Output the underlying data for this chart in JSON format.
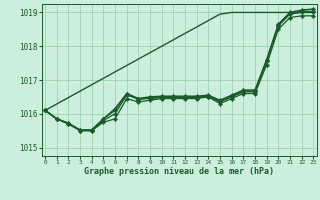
{
  "title": "Graphe pression niveau de la mer (hPa)",
  "hours": [
    0,
    1,
    2,
    3,
    4,
    5,
    6,
    7,
    8,
    9,
    10,
    11,
    12,
    13,
    14,
    15,
    16,
    17,
    18,
    19,
    20,
    21,
    22,
    23
  ],
  "ylim": [
    1014.75,
    1019.25
  ],
  "yticks": [
    1015,
    1016,
    1017,
    1018,
    1019
  ],
  "background_color": "#cceedd",
  "grid_color": "#99ccaa",
  "line_color": "#1a5c2a",
  "lines": [
    {
      "values": [
        1016.1,
        1015.85,
        1015.7,
        1015.5,
        1015.5,
        1015.75,
        1015.85,
        1016.45,
        1016.35,
        1016.4,
        1016.45,
        1016.45,
        1016.45,
        1016.45,
        1016.5,
        1016.3,
        1016.45,
        1016.6,
        1016.6,
        1017.45,
        1018.5,
        1018.85,
        1018.9,
        1018.9
      ],
      "marker": "D",
      "markersize": 2.2,
      "linewidth": 0.9
    },
    {
      "values": [
        1016.1,
        1015.85,
        1015.7,
        1015.5,
        1015.5,
        1015.8,
        1016.0,
        1016.55,
        1016.45,
        1016.45,
        1016.48,
        1016.48,
        1016.48,
        1016.48,
        1016.5,
        1016.35,
        1016.5,
        1016.65,
        1016.65,
        1017.55,
        1018.6,
        1018.95,
        1019.0,
        1019.0
      ],
      "marker": "D",
      "markersize": 2.2,
      "linewidth": 0.9
    },
    {
      "values": [
        1016.1,
        1015.85,
        1015.72,
        1015.52,
        1015.52,
        1015.85,
        1016.1,
        1016.58,
        1016.42,
        1016.47,
        1016.5,
        1016.5,
        1016.5,
        1016.5,
        1016.52,
        1016.38,
        1016.52,
        1016.67,
        1016.67,
        1017.58,
        1018.62,
        1018.98,
        1019.03,
        1019.03
      ],
      "marker": "D",
      "markersize": 2.2,
      "linewidth": 0.9
    },
    {
      "values": [
        1016.1,
        1015.85,
        1015.72,
        1015.52,
        1015.52,
        1015.85,
        1016.15,
        1016.6,
        1016.45,
        1016.5,
        1016.52,
        1016.52,
        1016.52,
        1016.52,
        1016.55,
        1016.4,
        1016.55,
        1016.7,
        1016.7,
        1017.6,
        1018.65,
        1019.0,
        1019.07,
        1019.1
      ],
      "marker": "D",
      "markersize": 2.2,
      "linewidth": 1.1
    },
    {
      "values": [
        1016.1,
        1016.29,
        1016.48,
        1016.67,
        1016.86,
        1017.05,
        1017.24,
        1017.43,
        1017.62,
        1017.81,
        1018.0,
        1018.19,
        1018.38,
        1018.57,
        1018.76,
        1018.95,
        1019.0,
        1019.0,
        1019.0,
        1019.0,
        1019.0,
        1019.0,
        1019.0,
        1019.0
      ],
      "marker": null,
      "markersize": 0,
      "linewidth": 1.0
    }
  ]
}
